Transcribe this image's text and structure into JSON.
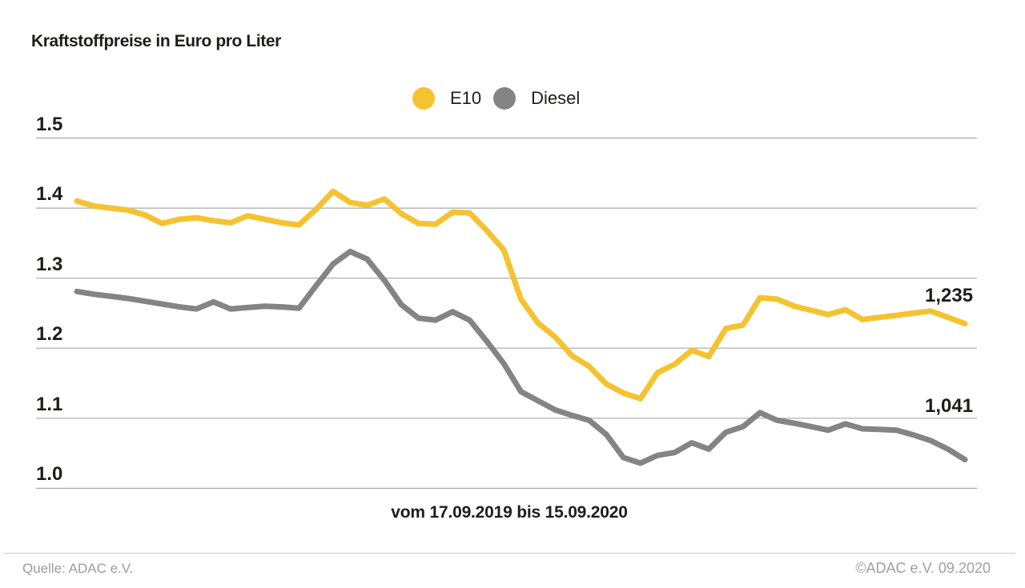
{
  "title": "Kraftstoffpreise in Euro pro Liter",
  "legend": [
    {
      "label": "E10",
      "color": "#F5C230"
    },
    {
      "label": "Diesel",
      "color": "#848484"
    }
  ],
  "chart_data": {
    "type": "line",
    "title": "Kraftstoffpreise in Euro pro Liter",
    "x_label": "vom 17.09.2019 bis 15.09.2020",
    "x_start": "17.09.2019",
    "x_end": "15.09.2020",
    "x_interval": "weekly",
    "ylim": [
      1.0,
      1.5
    ],
    "y_ticks": [
      "1.5",
      "1.4",
      "1.3",
      "1.2",
      "1.1",
      "1.0"
    ],
    "y_tick_values": [
      1.5,
      1.4,
      1.3,
      1.2,
      1.1,
      1.0
    ],
    "grid": true,
    "grid_color": "#A8A8A8",
    "legend_position": "top-center",
    "series": [
      {
        "name": "E10",
        "color": "#F5C230",
        "end_label": "1,235",
        "end_value": 1.235,
        "values": [
          1.41,
          1.403,
          1.4,
          1.397,
          1.39,
          1.378,
          1.384,
          1.386,
          1.382,
          1.379,
          1.389,
          1.384,
          1.379,
          1.376,
          1.398,
          1.424,
          1.408,
          1.404,
          1.413,
          1.392,
          1.378,
          1.377,
          1.394,
          1.393,
          1.368,
          1.34,
          1.27,
          1.236,
          1.216,
          1.189,
          1.174,
          1.149,
          1.136,
          1.128,
          1.165,
          1.177,
          1.197,
          1.188,
          1.228,
          1.233,
          1.272,
          1.27,
          1.26,
          1.254,
          1.248,
          1.255,
          1.241,
          1.244,
          1.247,
          1.25,
          1.253,
          1.244,
          1.235
        ]
      },
      {
        "name": "Diesel",
        "color": "#848484",
        "end_label": "1,041",
        "end_value": 1.041,
        "values": [
          1.281,
          1.277,
          1.274,
          1.271,
          1.267,
          1.263,
          1.259,
          1.256,
          1.266,
          1.256,
          1.258,
          1.26,
          1.259,
          1.257,
          1.289,
          1.32,
          1.338,
          1.327,
          1.297,
          1.262,
          1.243,
          1.24,
          1.252,
          1.24,
          1.21,
          1.178,
          1.138,
          1.125,
          1.112,
          1.104,
          1.097,
          1.077,
          1.044,
          1.036,
          1.047,
          1.051,
          1.065,
          1.056,
          1.08,
          1.088,
          1.108,
          1.097,
          1.093,
          1.088,
          1.083,
          1.092,
          1.085,
          1.084,
          1.083,
          1.076,
          1.068,
          1.056,
          1.041
        ]
      }
    ]
  },
  "footer": {
    "source": "Quelle: ADAC e.V.",
    "copyright": "©ADAC e.V. 09.2020"
  }
}
